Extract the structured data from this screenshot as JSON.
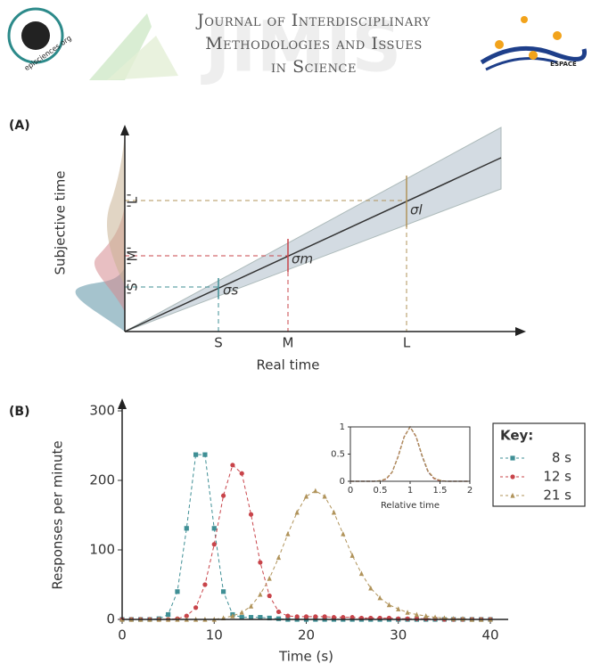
{
  "header": {
    "logo_left": "episciences.org",
    "watermark": "JIMIS",
    "title_lines": [
      "Journal of Interdisciplinary",
      "Methodologies and Issues",
      "in Science"
    ],
    "logo_right": "ESPACE"
  },
  "figure_a": {
    "panel": "(A)",
    "y_label": "Subjective time",
    "x_label": "Real time",
    "x_marks": [
      "S",
      "M",
      "L"
    ],
    "y_marks": [
      "'S'",
      "'M'",
      "'L'"
    ],
    "sigmas": [
      "σs",
      "σm",
      "σl"
    ]
  },
  "chart_data": [
    {
      "type": "line",
      "panel": "(B)",
      "xlabel": "Time (s)",
      "ylabel": "Responses per minute",
      "legend_title": "Key:",
      "x": [
        0,
        1,
        2,
        3,
        4,
        5,
        6,
        7,
        8,
        9,
        10,
        11,
        12,
        13,
        14,
        15,
        16,
        17,
        18,
        19,
        20,
        21,
        22,
        23,
        24,
        25,
        26,
        27,
        28,
        29,
        30,
        31,
        32,
        33,
        34,
        35,
        36,
        37,
        38,
        39,
        40
      ],
      "series": [
        {
          "name": "8 s",
          "color": "#3f8f95",
          "marker": "square",
          "values": [
            0,
            0,
            0,
            0,
            1,
            7,
            40,
            131,
            237,
            237,
            131,
            40,
            7,
            3,
            3,
            3,
            2,
            1,
            0,
            0,
            0,
            0,
            0,
            0,
            0,
            0,
            0,
            0,
            0,
            0,
            0,
            0,
            0,
            0,
            0,
            0,
            0,
            0,
            0,
            0,
            0
          ]
        },
        {
          "name": "12 s",
          "color": "#c8444a",
          "marker": "circle",
          "values": [
            0,
            0,
            0,
            0,
            0,
            0,
            1,
            5,
            17,
            50,
            108,
            178,
            222,
            210,
            151,
            82,
            34,
            11,
            5,
            4,
            4,
            4,
            4,
            3,
            3,
            3,
            2,
            2,
            2,
            2,
            1,
            1,
            1,
            1,
            1,
            0,
            0,
            0,
            0,
            0,
            0
          ]
        },
        {
          "name": "21 s",
          "color": "#b0935a",
          "marker": "triangle",
          "values": [
            0,
            0,
            0,
            0,
            0,
            0,
            0,
            0,
            0,
            0,
            0,
            2,
            5,
            10,
            19,
            36,
            59,
            89,
            123,
            154,
            177,
            185,
            177,
            154,
            123,
            92,
            66,
            45,
            31,
            21,
            15,
            10,
            7,
            5,
            3,
            2,
            1,
            1,
            0,
            0,
            0
          ]
        }
      ],
      "xlim": [
        0,
        40
      ],
      "xticks": [
        0,
        10,
        20,
        30,
        40
      ],
      "ylim": [
        0,
        300
      ],
      "yticks": [
        0,
        100,
        200,
        300
      ]
    },
    {
      "type": "line",
      "xlabel": "Relative time",
      "x": [
        0,
        0.1,
        0.2,
        0.3,
        0.4,
        0.5,
        0.6,
        0.7,
        0.8,
        0.9,
        1,
        1.1,
        1.2,
        1.3,
        1.4,
        1.5,
        1.6,
        1.7,
        1.8,
        1.9,
        2
      ],
      "series": [
        {
          "color": "#3f8f95",
          "values": [
            0,
            0,
            0,
            0,
            0,
            0.01,
            0.04,
            0.17,
            0.46,
            0.82,
            1,
            0.82,
            0.46,
            0.17,
            0.05,
            0.01,
            0,
            0,
            0,
            0,
            0
          ]
        },
        {
          "color": "#c8444a",
          "values": [
            0,
            0,
            0,
            0,
            0,
            0.01,
            0.04,
            0.17,
            0.46,
            0.82,
            1,
            0.82,
            0.47,
            0.18,
            0.05,
            0.01,
            0,
            0,
            0,
            0,
            0
          ]
        },
        {
          "color": "#b0935a",
          "values": [
            0,
            0,
            0,
            0,
            0,
            0.01,
            0.05,
            0.17,
            0.45,
            0.81,
            1,
            0.83,
            0.48,
            0.19,
            0.06,
            0.02,
            0,
            0,
            0,
            0,
            0
          ]
        }
      ],
      "xlim": [
        0,
        2
      ],
      "xticks": [
        0,
        0.5,
        1,
        1.5,
        2
      ],
      "ylim": [
        0,
        1
      ],
      "yticks": [
        0,
        0.5,
        1
      ]
    }
  ]
}
